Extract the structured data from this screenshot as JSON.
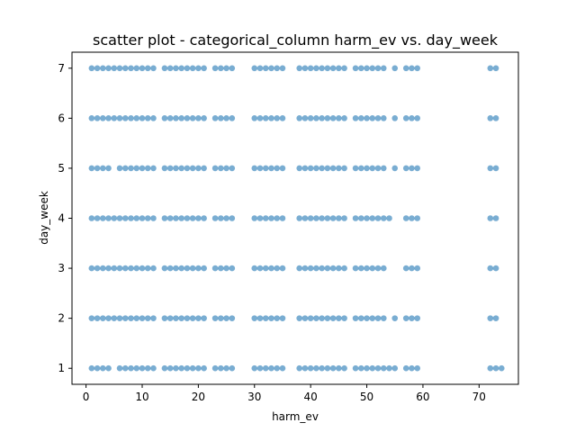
{
  "chart_data": {
    "type": "scatter",
    "title": "scatter plot - categorical_column harm_ev vs. day_week",
    "xlabel": "harm_ev",
    "ylabel": "day_week",
    "xlim": [
      -2.5,
      77
    ],
    "ylim": [
      0.68,
      7.32
    ],
    "xticks": [
      0,
      10,
      20,
      30,
      40,
      50,
      60,
      70
    ],
    "yticks": [
      1,
      2,
      3,
      4,
      5,
      6,
      7
    ],
    "grid": false,
    "color": "#1f77b4",
    "opacity": 0.6,
    "x_values_per_day": {
      "1": [
        1,
        2,
        3,
        4,
        6,
        7,
        8,
        9,
        10,
        11,
        12,
        14,
        15,
        16,
        17,
        18,
        19,
        20,
        21,
        23,
        24,
        25,
        26,
        30,
        31,
        32,
        33,
        34,
        35,
        38,
        39,
        40,
        41,
        42,
        43,
        44,
        45,
        46,
        48,
        49,
        50,
        51,
        52,
        53,
        54,
        55,
        57,
        58,
        59,
        72,
        73,
        74
      ],
      "2": [
        1,
        2,
        3,
        4,
        5,
        6,
        7,
        8,
        9,
        10,
        11,
        12,
        14,
        15,
        16,
        17,
        18,
        19,
        20,
        21,
        23,
        24,
        25,
        26,
        30,
        31,
        32,
        33,
        34,
        35,
        38,
        39,
        40,
        41,
        42,
        43,
        44,
        45,
        46,
        48,
        49,
        50,
        51,
        52,
        53,
        55,
        57,
        58,
        59,
        72,
        73
      ],
      "3": [
        1,
        2,
        3,
        4,
        5,
        6,
        7,
        8,
        9,
        10,
        11,
        12,
        14,
        15,
        16,
        17,
        18,
        19,
        20,
        21,
        23,
        24,
        25,
        26,
        30,
        31,
        32,
        33,
        34,
        35,
        38,
        39,
        40,
        41,
        42,
        43,
        44,
        45,
        46,
        48,
        49,
        50,
        51,
        52,
        53,
        57,
        58,
        59,
        72,
        73
      ],
      "4": [
        1,
        2,
        3,
        4,
        5,
        6,
        7,
        8,
        9,
        10,
        11,
        12,
        14,
        15,
        16,
        17,
        18,
        19,
        20,
        21,
        23,
        24,
        25,
        26,
        30,
        31,
        32,
        33,
        34,
        35,
        38,
        39,
        40,
        41,
        42,
        43,
        44,
        45,
        46,
        48,
        49,
        50,
        51,
        52,
        53,
        54,
        57,
        58,
        59,
        72,
        73
      ],
      "5": [
        1,
        2,
        3,
        4,
        6,
        7,
        8,
        9,
        10,
        11,
        12,
        14,
        15,
        16,
        17,
        18,
        19,
        20,
        21,
        23,
        24,
        25,
        26,
        30,
        31,
        32,
        33,
        34,
        35,
        38,
        39,
        40,
        41,
        42,
        43,
        44,
        45,
        46,
        48,
        49,
        50,
        51,
        52,
        53,
        55,
        57,
        58,
        59,
        72,
        73
      ],
      "6": [
        1,
        2,
        3,
        4,
        5,
        6,
        7,
        8,
        9,
        10,
        11,
        12,
        14,
        15,
        16,
        17,
        18,
        19,
        20,
        21,
        23,
        24,
        25,
        26,
        30,
        31,
        32,
        33,
        34,
        35,
        38,
        39,
        40,
        41,
        42,
        43,
        44,
        45,
        46,
        48,
        49,
        50,
        51,
        52,
        53,
        55,
        57,
        58,
        59,
        72,
        73
      ],
      "7": [
        1,
        2,
        3,
        4,
        5,
        6,
        7,
        8,
        9,
        10,
        11,
        12,
        14,
        15,
        16,
        17,
        18,
        19,
        20,
        21,
        23,
        24,
        25,
        26,
        30,
        31,
        32,
        33,
        34,
        35,
        38,
        39,
        40,
        41,
        42,
        43,
        44,
        45,
        46,
        48,
        49,
        50,
        51,
        52,
        53,
        55,
        57,
        58,
        59,
        72,
        73
      ]
    }
  }
}
